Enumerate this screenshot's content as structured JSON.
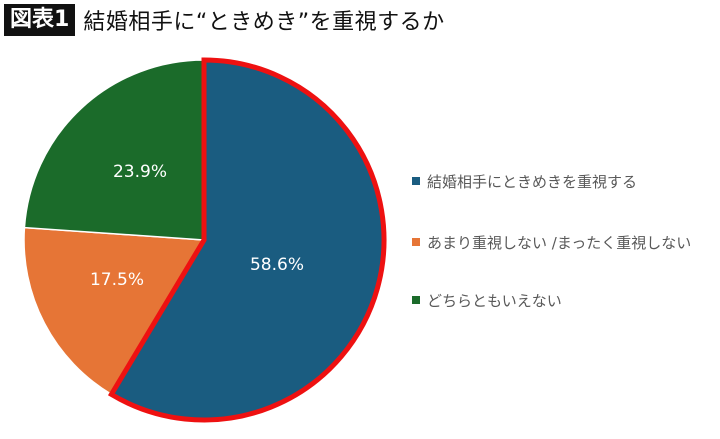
{
  "header": {
    "badge": "図表1",
    "title": "結婚相手に“ときめき”を重視するか"
  },
  "chart_data": {
    "type": "pie",
    "title": "結婚相手に“ときめき”を重視するか",
    "categories": [
      "結婚相手にときめきを重視する",
      "あまり重視しない /まったく重視しない",
      "どちらともいえない"
    ],
    "values": [
      58.6,
      17.5,
      23.9
    ],
    "labels": [
      "58.6%",
      "17.5%",
      "23.9%"
    ],
    "colors": [
      "#1a5c80",
      "#e67536",
      "#1b6b2a"
    ],
    "highlight": {
      "category": "結婚相手にときめきを重視する",
      "outline_color": "#ee1111"
    },
    "start_angle_deg": 0,
    "direction": "clockwise",
    "legend_position": "right"
  },
  "legend": {
    "items": [
      {
        "label": "結婚相手にときめきを重視する",
        "color": "#1a5c80"
      },
      {
        "label": "あまり重視しない /まったく重視しない",
        "color": "#e67536"
      },
      {
        "label": "どちらともいえない",
        "color": "#1b6b2a"
      }
    ]
  }
}
